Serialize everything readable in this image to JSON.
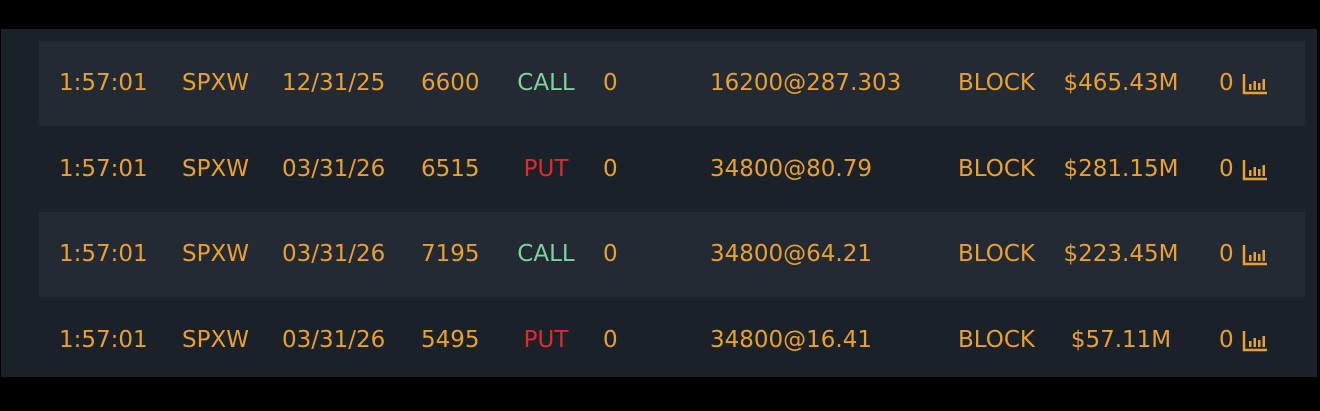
{
  "colors": {
    "text": "#e8a030",
    "call": "#7fd39a",
    "put": "#e0282e"
  },
  "rows": [
    {
      "time": "1:57:01",
      "symbol": "SPXW",
      "expiry": "12/31/25",
      "strike": "6600",
      "type": "CALL",
      "col6": "0",
      "trade": "16200@287.303",
      "kind": "BLOCK",
      "premium": "$465.43M",
      "count": "0",
      "icon": "chart-bars-icon"
    },
    {
      "time": "1:57:01",
      "symbol": "SPXW",
      "expiry": "03/31/26",
      "strike": "6515",
      "type": "PUT",
      "col6": "0",
      "trade": "34800@80.79",
      "kind": "BLOCK",
      "premium": "$281.15M",
      "count": "0",
      "icon": "chart-bars-icon"
    },
    {
      "time": "1:57:01",
      "symbol": "SPXW",
      "expiry": "03/31/26",
      "strike": "7195",
      "type": "CALL",
      "col6": "0",
      "trade": "34800@64.21",
      "kind": "BLOCK",
      "premium": "$223.45M",
      "count": "0",
      "icon": "chart-bars-icon"
    },
    {
      "time": "1:57:01",
      "symbol": "SPXW",
      "expiry": "03/31/26",
      "strike": "5495",
      "type": "PUT",
      "col6": "0",
      "trade": "34800@16.41",
      "kind": "BLOCK",
      "premium": "$57.11M",
      "count": "0",
      "icon": "chart-bars-icon"
    }
  ]
}
